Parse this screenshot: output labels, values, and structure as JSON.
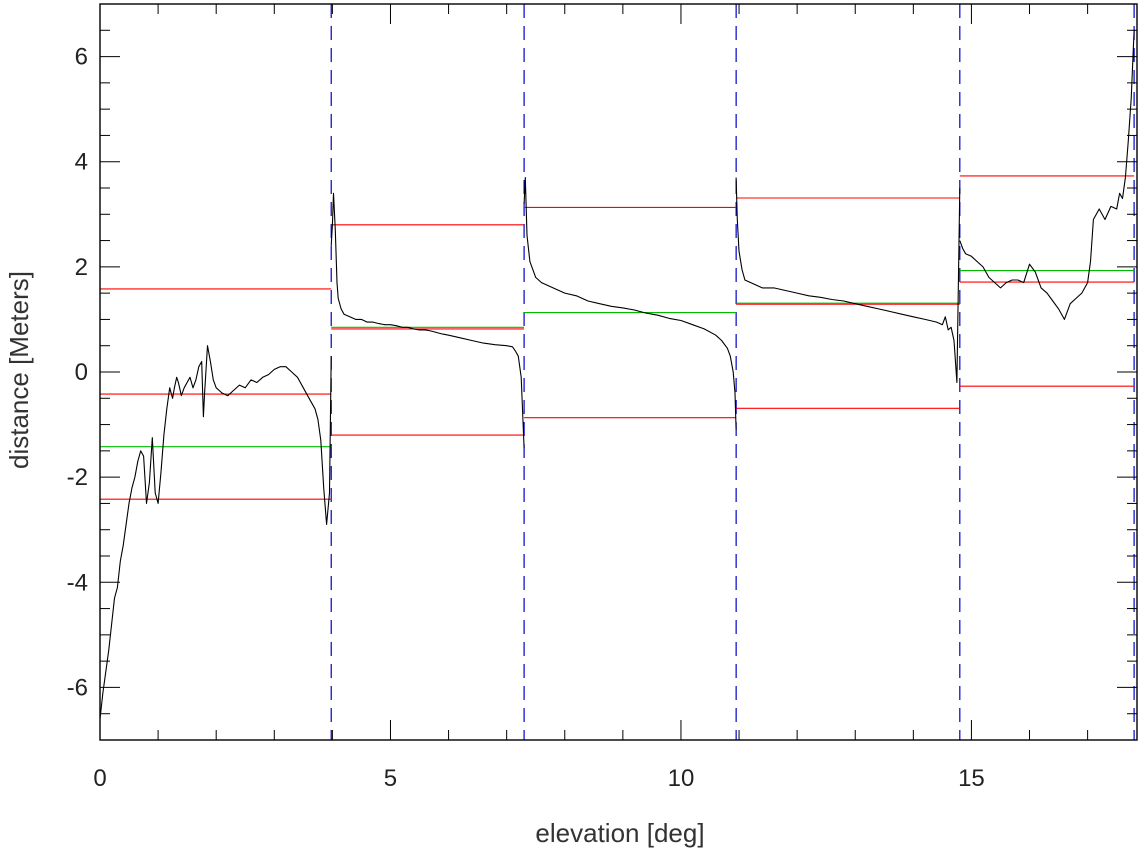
{
  "chart_data": {
    "type": "line",
    "title": "",
    "xlabel": "elevation [deg]",
    "ylabel": "distance [Meters]",
    "xlim": [
      0,
      17.85
    ],
    "ylim": [
      -7,
      7
    ],
    "x_ticks": [
      0,
      5,
      10,
      15
    ],
    "x_tick_labels": [
      "0",
      "5",
      "10",
      "15"
    ],
    "x_minor_step": 1,
    "y_ticks": [
      -6,
      -4,
      -2,
      0,
      2,
      4,
      6
    ],
    "y_tick_labels": [
      "-6",
      "-4",
      "-2",
      "0",
      "2",
      "4",
      "6"
    ],
    "y_minor_step": 0.5,
    "grid": false,
    "legend": "none",
    "colors": {
      "data": "#000000",
      "upper": "#ff0000",
      "lower": "#ff0000",
      "mean": "#00bb00",
      "boundary": "#0000cc"
    },
    "segment_boundaries": [
      3.98,
      7.3,
      10.95,
      14.8,
      17.8
    ],
    "segments": [
      {
        "x_start": 0.0,
        "x_end": 3.98,
        "mean": -1.42,
        "upper": 1.58,
        "lower": -2.42,
        "mid": -0.42
      },
      {
        "x_start": 3.98,
        "x_end": 7.3,
        "mean": 0.85,
        "upper": 2.8,
        "lower": -1.2,
        "mid": 0.82
      },
      {
        "x_start": 7.3,
        "x_end": 10.95,
        "mean": 1.13,
        "upper": 3.13,
        "lower": -0.87,
        "mid": null
      },
      {
        "x_start": 10.95,
        "x_end": 14.8,
        "mean": 1.31,
        "upper": 3.31,
        "lower": -0.69,
        "mid": 1.29
      },
      {
        "x_start": 14.8,
        "x_end": 17.8,
        "mean": 1.93,
        "upper": 3.73,
        "lower": -0.27,
        "mid": 1.71
      }
    ],
    "series": [
      {
        "x": [
          0.0,
          0.05,
          0.1,
          0.15,
          0.2,
          0.25,
          0.3,
          0.35,
          0.4,
          0.45,
          0.5,
          0.55,
          0.6,
          0.65,
          0.7,
          0.75,
          0.8,
          0.85,
          0.9,
          0.95,
          1.0,
          1.05,
          1.1,
          1.15,
          1.2,
          1.25,
          1.28,
          1.32,
          1.35,
          1.38,
          1.4,
          1.45,
          1.5,
          1.55,
          1.6,
          1.65,
          1.7,
          1.75,
          1.78,
          1.8,
          1.85,
          1.9,
          1.95,
          2.0,
          2.05,
          2.1,
          2.2,
          2.3,
          2.4,
          2.5,
          2.6,
          2.7,
          2.8,
          2.9,
          3.0,
          3.1,
          3.2,
          3.3,
          3.4,
          3.5,
          3.6,
          3.7,
          3.75,
          3.8,
          3.85,
          3.9,
          3.95,
          3.98
        ],
        "y": [
          -6.6,
          -6.1,
          -5.7,
          -5.3,
          -4.8,
          -4.3,
          -4.1,
          -3.6,
          -3.3,
          -2.9,
          -2.5,
          -2.2,
          -2.0,
          -1.7,
          -1.5,
          -1.6,
          -2.5,
          -2.1,
          -1.25,
          -2.3,
          -2.5,
          -1.9,
          -1.2,
          -0.7,
          -0.3,
          -0.5,
          -0.3,
          -0.1,
          -0.2,
          -0.35,
          -0.45,
          -0.3,
          -0.2,
          -0.1,
          -0.3,
          -0.15,
          0.1,
          0.2,
          -0.85,
          -0.4,
          0.5,
          0.2,
          -0.15,
          -0.3,
          -0.35,
          -0.4,
          -0.45,
          -0.35,
          -0.25,
          -0.3,
          -0.15,
          -0.2,
          -0.1,
          -0.05,
          0.05,
          0.1,
          0.1,
          0.0,
          -0.1,
          -0.3,
          -0.5,
          -0.7,
          -0.9,
          -1.3,
          -2.2,
          -2.9,
          -2.3,
          0.3
        ]
      },
      {
        "x": [
          3.98,
          4.0,
          4.02,
          4.05,
          4.08,
          4.1,
          4.15,
          4.2,
          4.3,
          4.4,
          4.5,
          4.6,
          4.7,
          4.8,
          4.9,
          5.0,
          5.1,
          5.2,
          5.3,
          5.4,
          5.5,
          5.6,
          5.7,
          5.8,
          5.9,
          6.0,
          6.2,
          6.4,
          6.6,
          6.8,
          7.0,
          7.1,
          7.15,
          7.2,
          7.25,
          7.3
        ],
        "y": [
          2.4,
          2.8,
          3.4,
          2.7,
          1.7,
          1.4,
          1.2,
          1.1,
          1.05,
          1.0,
          1.0,
          0.95,
          0.95,
          0.92,
          0.9,
          0.9,
          0.88,
          0.85,
          0.85,
          0.82,
          0.8,
          0.8,
          0.78,
          0.75,
          0.72,
          0.7,
          0.65,
          0.6,
          0.55,
          0.52,
          0.5,
          0.48,
          0.4,
          0.3,
          -0.1,
          -1.45
        ]
      },
      {
        "x": [
          7.3,
          7.32,
          7.35,
          7.4,
          7.5,
          7.6,
          7.7,
          7.8,
          8.0,
          8.2,
          8.4,
          8.6,
          8.8,
          9.0,
          9.2,
          9.4,
          9.6,
          9.8,
          10.0,
          10.2,
          10.4,
          10.6,
          10.7,
          10.8,
          10.85,
          10.9,
          10.93,
          10.95
        ],
        "y": [
          3.2,
          3.7,
          2.6,
          2.1,
          1.8,
          1.7,
          1.65,
          1.6,
          1.5,
          1.45,
          1.35,
          1.3,
          1.25,
          1.22,
          1.18,
          1.12,
          1.08,
          1.02,
          0.98,
          0.9,
          0.82,
          0.7,
          0.6,
          0.45,
          0.3,
          0.0,
          -0.4,
          -1.1
        ]
      },
      {
        "x": [
          10.95,
          10.97,
          11.0,
          11.05,
          11.1,
          11.2,
          11.3,
          11.4,
          11.5,
          11.6,
          11.8,
          12.0,
          12.2,
          12.4,
          12.6,
          12.8,
          13.0,
          13.2,
          13.4,
          13.6,
          13.8,
          14.0,
          14.2,
          14.4,
          14.5,
          14.55,
          14.6,
          14.65,
          14.7,
          14.75,
          14.8
        ],
        "y": [
          3.7,
          2.9,
          2.3,
          1.95,
          1.75,
          1.7,
          1.65,
          1.6,
          1.6,
          1.6,
          1.55,
          1.5,
          1.45,
          1.42,
          1.38,
          1.35,
          1.3,
          1.25,
          1.2,
          1.15,
          1.1,
          1.05,
          1.0,
          0.95,
          0.9,
          1.05,
          0.8,
          0.85,
          0.6,
          -0.2,
          3.5
        ]
      },
      {
        "x": [
          14.8,
          14.85,
          14.9,
          15.0,
          15.1,
          15.2,
          15.3,
          15.4,
          15.5,
          15.6,
          15.7,
          15.8,
          15.9,
          16.0,
          16.1,
          16.2,
          16.3,
          16.4,
          16.5,
          16.6,
          16.7,
          16.8,
          16.9,
          17.0,
          17.05,
          17.1,
          17.2,
          17.3,
          17.4,
          17.5,
          17.55,
          17.6,
          17.65,
          17.7,
          17.75,
          17.8
        ],
        "y": [
          2.5,
          2.35,
          2.25,
          2.2,
          2.1,
          2.0,
          1.8,
          1.7,
          1.6,
          1.7,
          1.75,
          1.75,
          1.7,
          2.05,
          1.9,
          1.6,
          1.5,
          1.35,
          1.2,
          1.0,
          1.3,
          1.4,
          1.5,
          1.7,
          2.1,
          2.9,
          3.1,
          2.9,
          3.15,
          3.1,
          3.4,
          3.3,
          3.7,
          4.4,
          5.2,
          6.5
        ]
      }
    ]
  }
}
